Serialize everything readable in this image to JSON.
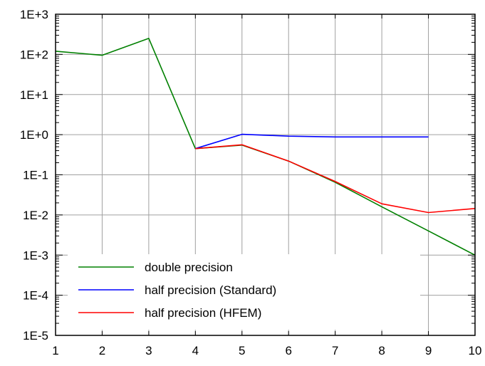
{
  "chart_data": {
    "type": "line",
    "title": "",
    "xlabel": "",
    "ylabel": "",
    "x_scale": "linear",
    "y_scale": "log",
    "xlim": [
      1,
      10
    ],
    "ylim": [
      1e-05,
      1000
    ],
    "grid": true,
    "legend_position": "bottom-left",
    "x_ticks": [
      {
        "value": 1,
        "label": "1"
      },
      {
        "value": 2,
        "label": "2"
      },
      {
        "value": 3,
        "label": "3"
      },
      {
        "value": 4,
        "label": "4"
      },
      {
        "value": 5,
        "label": "5"
      },
      {
        "value": 6,
        "label": "6"
      },
      {
        "value": 7,
        "label": "7"
      },
      {
        "value": 8,
        "label": "8"
      },
      {
        "value": 9,
        "label": "9"
      },
      {
        "value": 10,
        "label": "10"
      }
    ],
    "y_ticks": [
      {
        "value": 1000,
        "label": "1E+3"
      },
      {
        "value": 100,
        "label": "1E+2"
      },
      {
        "value": 10,
        "label": "1E+1"
      },
      {
        "value": 1,
        "label": "1E+0"
      },
      {
        "value": 0.1,
        "label": "1E-1"
      },
      {
        "value": 0.01,
        "label": "1E-2"
      },
      {
        "value": 0.001,
        "label": "1E-3"
      },
      {
        "value": 0.0001,
        "label": "1E-4"
      },
      {
        "value": 1e-05,
        "label": "1E-5"
      }
    ],
    "series": [
      {
        "name": "double precision",
        "color": "#008000",
        "x": [
          1,
          2,
          3,
          4,
          5,
          6,
          7,
          8,
          9,
          10
        ],
        "y": [
          120,
          95,
          250,
          0.45,
          0.55,
          0.22,
          0.065,
          0.016,
          0.004,
          0.001
        ]
      },
      {
        "name": "half precision (Standard)",
        "color": "#0000ff",
        "x": [
          4,
          5,
          6,
          7,
          8,
          9
        ],
        "y": [
          0.45,
          1.02,
          0.92,
          0.88,
          0.88,
          0.88
        ]
      },
      {
        "name": "half precision (HFEM)",
        "color": "#ff0000",
        "x": [
          4,
          5,
          6,
          7,
          8,
          9,
          10
        ],
        "y": [
          0.45,
          0.56,
          0.22,
          0.068,
          0.019,
          0.0115,
          0.0145
        ]
      }
    ]
  }
}
